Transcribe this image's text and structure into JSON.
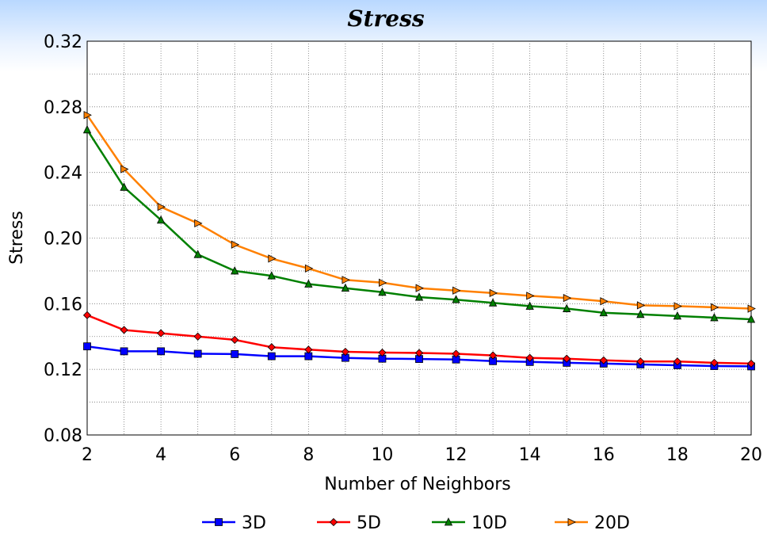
{
  "chart_data": {
    "type": "line",
    "title": "Stress",
    "xlabel": "Number of Neighbors",
    "ylabel": "Stress",
    "xlim": [
      2,
      20
    ],
    "ylim": [
      0.08,
      0.32
    ],
    "x_ticks": [
      "2",
      "4",
      "6",
      "8",
      "10",
      "12",
      "14",
      "16",
      "18",
      "20"
    ],
    "y_ticks": [
      "0.08",
      "0.12",
      "0.16",
      "0.20",
      "0.24",
      "0.28",
      "0.32"
    ],
    "grid": true,
    "legend_position": "bottom",
    "x": [
      2,
      3,
      4,
      5,
      6,
      7,
      8,
      9,
      10,
      11,
      12,
      13,
      14,
      15,
      16,
      17,
      18,
      19,
      20
    ],
    "series": [
      {
        "name": "3D",
        "color": "#0000ff",
        "marker": "square",
        "values": [
          0.134,
          0.131,
          0.131,
          0.1295,
          0.1293,
          0.128,
          0.128,
          0.127,
          0.1265,
          0.1263,
          0.126,
          0.125,
          0.1245,
          0.124,
          0.1235,
          0.123,
          0.1225,
          0.122,
          0.1218
        ]
      },
      {
        "name": "5D",
        "color": "#ff0000",
        "marker": "diamond",
        "values": [
          0.153,
          0.144,
          0.142,
          0.14,
          0.138,
          0.1335,
          0.132,
          0.1307,
          0.1302,
          0.13,
          0.1295,
          0.1285,
          0.127,
          0.1265,
          0.1255,
          0.1248,
          0.1248,
          0.124,
          0.1235
        ]
      },
      {
        "name": "10D",
        "color": "#008000",
        "marker": "triangle-up",
        "values": [
          0.266,
          0.231,
          0.211,
          0.19,
          0.18,
          0.177,
          0.172,
          0.1695,
          0.167,
          0.164,
          0.1625,
          0.1605,
          0.1585,
          0.157,
          0.1545,
          0.1535,
          0.1525,
          0.1515,
          0.1505
        ]
      },
      {
        "name": "20D",
        "color": "#ff8000",
        "marker": "triangle-right",
        "values": [
          0.275,
          0.242,
          0.219,
          0.209,
          0.196,
          0.1875,
          0.1815,
          0.1745,
          0.1728,
          0.1695,
          0.168,
          0.1665,
          0.1648,
          0.1635,
          0.1615,
          0.159,
          0.1585,
          0.1578,
          0.157
        ]
      }
    ]
  }
}
